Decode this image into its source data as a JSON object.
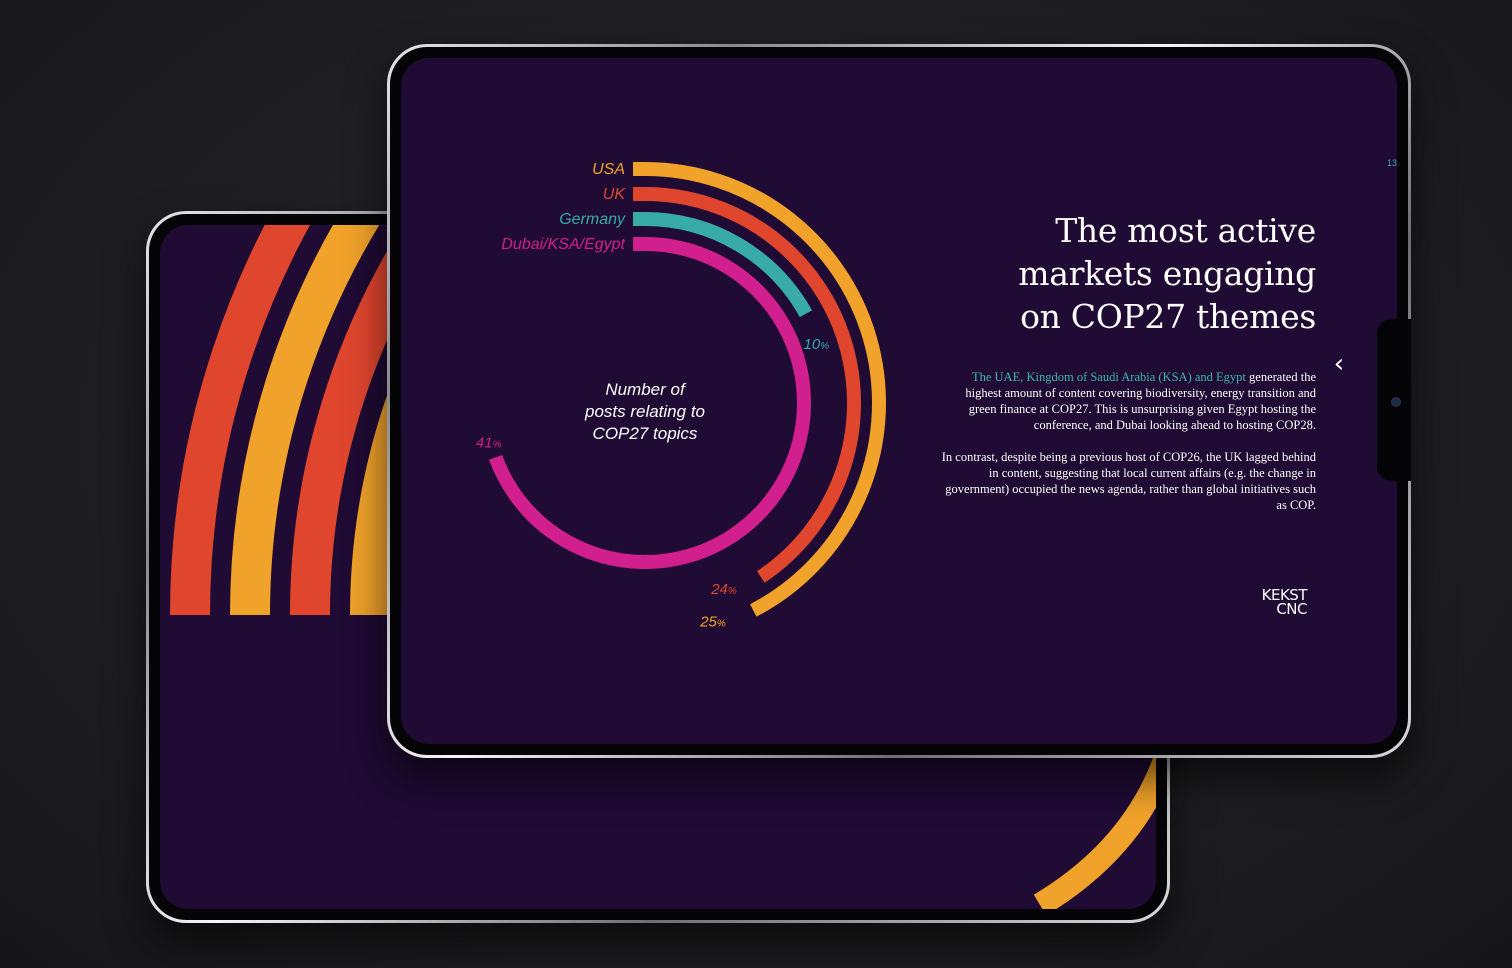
{
  "page": {
    "number": "13"
  },
  "headline": [
    "The most active",
    "markets engaging",
    "on COP27 themes"
  ],
  "body": {
    "p1_highlight": "The UAE, Kingdom of Saudi Arabia (KSA) and Egypt",
    "p1_rest": "generated the highest amount of content covering biodiversity, energy transition and green finance at COP27. This is unsurprising given Egypt hosting the conference, and Dubai looking ahead to hosting COP28.",
    "p2": "In contrast, despite being a previous host of COP26, the UK lagged behind in content, suggesting that local current affairs (e.g. the change in government) occupied the news agenda, rather than global initiatives such as COP."
  },
  "logo": {
    "line1": "KEKST",
    "line2": "CNC"
  },
  "colors": {
    "background": "#1f0b33",
    "usa": "#f0a22a",
    "uk": "#e0462e",
    "germany": "#38aaa8",
    "dubai": "#d21f8e",
    "accent_text": "#3fb6b0"
  },
  "icons": {
    "nav": "chevron-left-icon"
  },
  "chart_data": {
    "type": "radial-bar",
    "center_label": [
      "Number of",
      "posts relating to",
      "COP27 topics"
    ],
    "unit": "%",
    "series": [
      {
        "name": "USA",
        "value": 25,
        "color": "#f0a22a"
      },
      {
        "name": "UK",
        "value": 24,
        "color": "#e0462e"
      },
      {
        "name": "Germany",
        "value": 10,
        "color": "#38aaa8"
      },
      {
        "name": "Dubai/KSA/Egypt",
        "value": 41,
        "color": "#d21f8e"
      }
    ]
  }
}
